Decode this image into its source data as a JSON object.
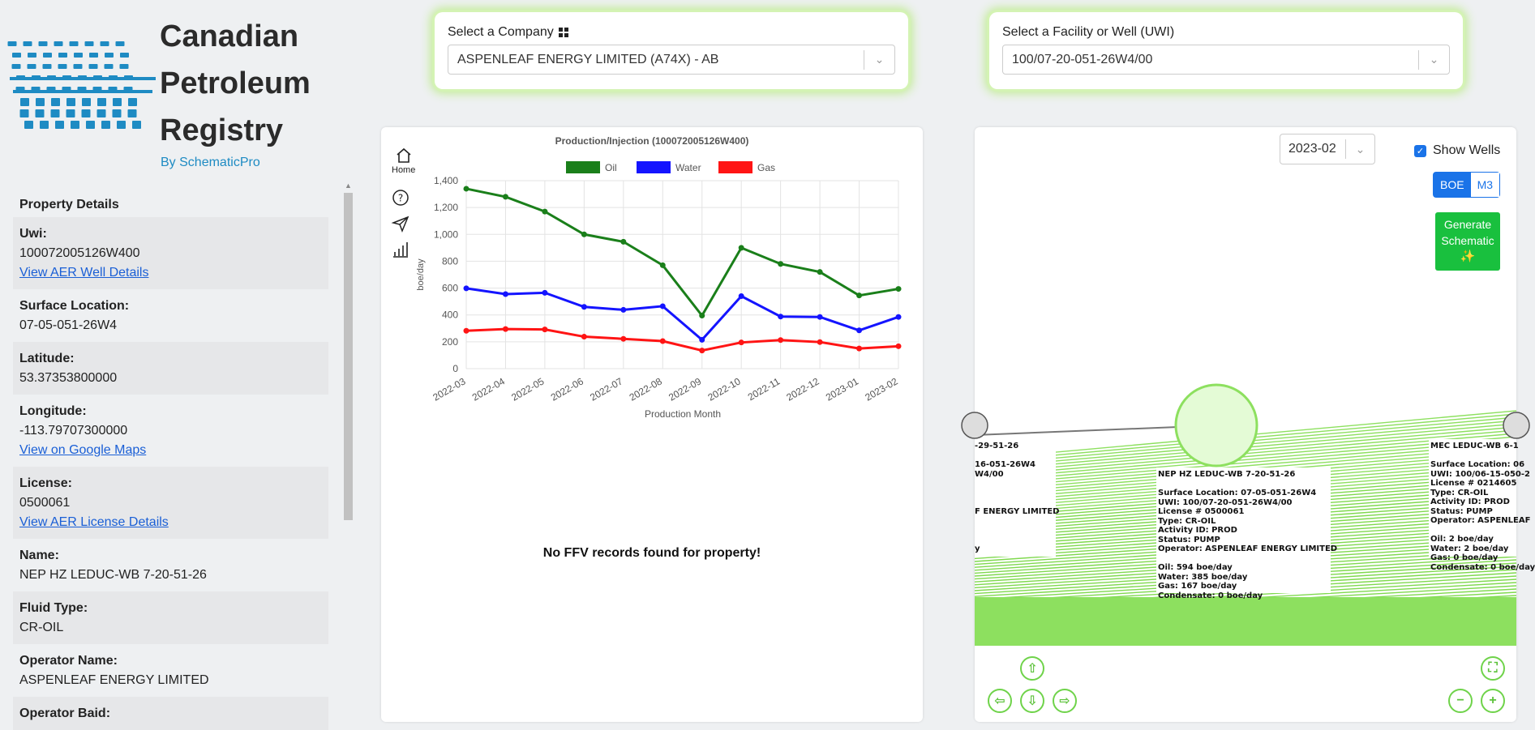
{
  "brand": {
    "title_lines": [
      "Canadian",
      "Petroleum",
      "Registry"
    ],
    "subtitle": "By SchematicPro"
  },
  "company_select": {
    "label": "Select a Company",
    "value": "ASPENLEAF ENERGY LIMITED (A74X) - AB"
  },
  "facility_select": {
    "label": "Select a Facility or Well (UWI)",
    "value": "100/07-20-051-26W4/00"
  },
  "details": {
    "heading": "Property Details",
    "fields": [
      {
        "label": "Uwi:",
        "value": "100072005126W400",
        "link": "View AER Well Details"
      },
      {
        "label": "Surface Location:",
        "value": "07-05-051-26W4"
      },
      {
        "label": "Latitude:",
        "value": "53.37353800000"
      },
      {
        "label": "Longitude:",
        "value": "-113.79707300000",
        "link": "View on Google Maps"
      },
      {
        "label": "License:",
        "value": "0500061",
        "link": "View AER License Details"
      },
      {
        "label": "Name:",
        "value": "NEP HZ LEDUC-WB 7-20-51-26"
      },
      {
        "label": "Fluid Type:",
        "value": "CR-OIL"
      },
      {
        "label": "Operator Name:",
        "value": "ASPENLEAF ENERGY LIMITED"
      },
      {
        "label": "Operator Baid:",
        "value": ""
      }
    ]
  },
  "chart_tools": {
    "home_label": "Home",
    "icons": [
      "home-icon",
      "help-icon",
      "send-icon",
      "bar-chart-icon"
    ]
  },
  "chart_data": {
    "type": "line",
    "title": "Production/Injection (100072005126W400)",
    "xlabel": "Production Month",
    "ylabel": "boe/day",
    "ylim": [
      0,
      1400
    ],
    "yticks": [
      "0",
      "200",
      "400",
      "600",
      "800",
      "1,000",
      "1,200",
      "1,400"
    ],
    "categories": [
      "2022-03",
      "2022-04",
      "2022-05",
      "2022-06",
      "2022-07",
      "2022-08",
      "2022-09",
      "2022-10",
      "2022-11",
      "2022-12",
      "2023-01",
      "2023-02"
    ],
    "legend_position": "top",
    "grid": true,
    "series": [
      {
        "name": "Oil",
        "color": "#1a7f1a",
        "values": [
          1340,
          1280,
          1170,
          1000,
          945,
          770,
          395,
          900,
          780,
          720,
          545,
          594
        ]
      },
      {
        "name": "Water",
        "color": "#1414ff",
        "values": [
          598,
          555,
          565,
          460,
          438,
          465,
          215,
          540,
          388,
          385,
          285,
          385
        ]
      },
      {
        "name": "Gas",
        "color": "#ff1414",
        "values": [
          282,
          295,
          292,
          238,
          222,
          205,
          135,
          195,
          213,
          198,
          150,
          167
        ]
      }
    ]
  },
  "no_ffv_message": "No FFV records found for property!",
  "schematic": {
    "date": "2023-02",
    "show_wells_label": "Show Wells",
    "unit_boe": "BOE",
    "unit_m3": "M3",
    "generate_label_1": "Generate",
    "generate_label_2": "Schematic",
    "left_well": {
      "name": "-29-51-26",
      "lines": [
        "16-051-26W4",
        "W4/00",
        "",
        "",
        "",
        "F ENERGY LIMITED",
        "",
        "",
        "",
        "y"
      ]
    },
    "center_well": {
      "name": "NEP HZ LEDUC-WB 7-20-51-26",
      "lines": [
        "Surface Location: 07-05-051-26W4",
        "UWI: 100/07-20-051-26W4/00",
        "License # 0500061",
        "Type: CR-OIL",
        "Activity ID: PROD",
        "Status: PUMP",
        "Operator: ASPENLEAF ENERGY LIMITED",
        "",
        "Oil: 594 boe/day",
        "Water: 385 boe/day",
        "Gas: 167 boe/day",
        "Condensate: 0 boe/day"
      ]
    },
    "right_well": {
      "name": "MEC LEDUC-WB 6-1",
      "lines": [
        "Surface Location: 06",
        "UWI: 100/06-15-050-2",
        "License # 0214605",
        "Type: CR-OIL",
        "Activity ID: PROD",
        "Status: PUMP",
        "Operator: ASPENLEAF",
        "",
        "Oil: 2 boe/day",
        "Water: 2 boe/day",
        "Gas: 0 boe/day",
        "Condensate: 0 boe/day"
      ]
    }
  }
}
